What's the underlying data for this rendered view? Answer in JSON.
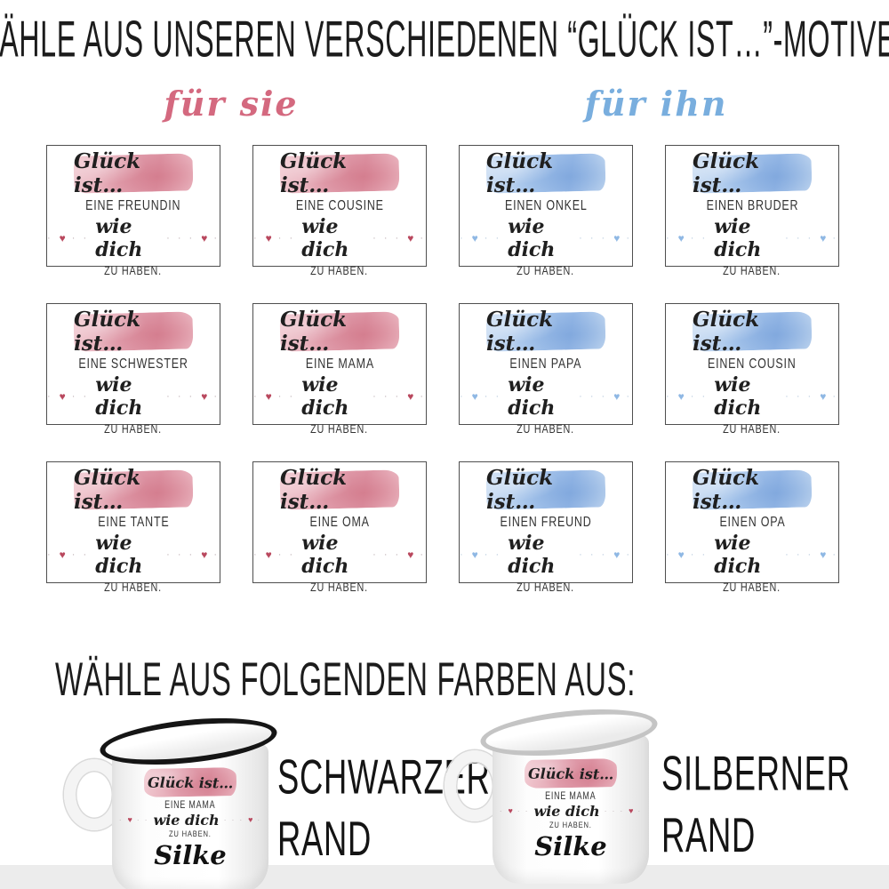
{
  "page": {
    "title": "WÄHLE AUS UNSEREN VERSCHIEDENEN “GLÜCK IST…”-MOTIVEN",
    "colors_heading": "WÄHLE AUS FOLGENDEN FARBEN AUS:"
  },
  "groups": {
    "her": {
      "label": "für sie",
      "color": "#d4697f"
    },
    "him": {
      "label": "für ihn",
      "color": "#79aede"
    }
  },
  "card_common": {
    "headline": "Glück ist…",
    "wie_dich": "wie dich",
    "zu_haben": "ZU HABEN.",
    "decor_left_pre": "·",
    "decor_heart": "♥",
    "decor_left_post": "· ·",
    "decor_right_pre": "· · ·",
    "decor_right_post": "·"
  },
  "motifs": [
    {
      "relation": "EINE FREUNDIN",
      "theme": "pink"
    },
    {
      "relation": "EINE COUSINE",
      "theme": "pink"
    },
    {
      "relation": "EINEN ONKEL",
      "theme": "blue"
    },
    {
      "relation": "EINEN BRUDER",
      "theme": "blue"
    },
    {
      "relation": "EINE SCHWESTER",
      "theme": "pink"
    },
    {
      "relation": "EINE MAMA",
      "theme": "pink"
    },
    {
      "relation": "EINEN PAPA",
      "theme": "blue"
    },
    {
      "relation": "EINEN COUSIN",
      "theme": "blue"
    },
    {
      "relation": "EINE TANTE",
      "theme": "pink"
    },
    {
      "relation": "EINE OMA",
      "theme": "pink"
    },
    {
      "relation": "EINEN FREUND",
      "theme": "blue"
    },
    {
      "relation": "EINEN OPA",
      "theme": "blue"
    }
  ],
  "mug_print": {
    "headline": "Glück ist…",
    "relation": "EINE MAMA",
    "wie_dich": "wie dich",
    "zu_haben": "ZU HABEN.",
    "name": "Silke"
  },
  "mugs": [
    {
      "rim": "black",
      "label_line1": "SCHWARZER",
      "label_line2": "RAND"
    },
    {
      "rim": "silver",
      "label_line1": "SILBERNER",
      "label_line2": "RAND"
    }
  ],
  "theme_colors": {
    "pink_swatch": "#dd94a4",
    "blue_swatch": "#96b8e6",
    "pink_heart": "#b9485e",
    "blue_heart": "#8fb8e4",
    "black_rim": "#151515",
    "silver_rim": "#c4c4c4",
    "bottom_strip": "#ececec"
  }
}
